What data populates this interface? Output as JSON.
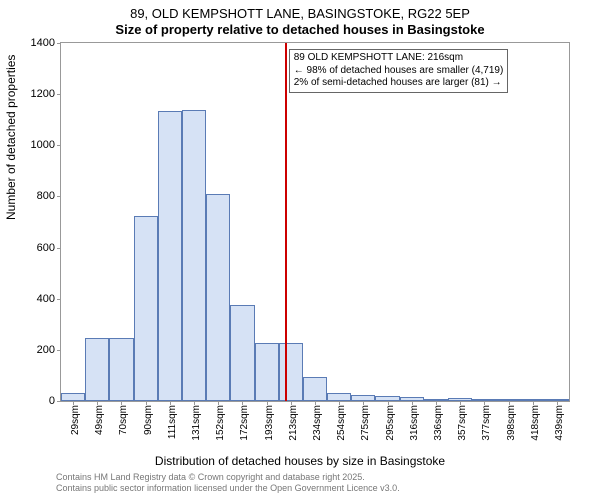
{
  "chart": {
    "type": "histogram",
    "title_main": "89, OLD KEMPSHOTT LANE, BASINGSTOKE, RG22 5EP",
    "title_sub": "Size of property relative to detached houses in Basingstoke",
    "ylabel": "Number of detached properties",
    "xlabel": "Distribution of detached houses by size in Basingstoke",
    "title_fontsize": 13,
    "label_fontsize": 12,
    "tick_fontsize": 11,
    "background_color": "#ffffff",
    "border_color": "#999999",
    "x_categories": [
      "29sqm",
      "49sqm",
      "70sqm",
      "90sqm",
      "111sqm",
      "131sqm",
      "152sqm",
      "172sqm",
      "193sqm",
      "213sqm",
      "234sqm",
      "254sqm",
      "275sqm",
      "295sqm",
      "316sqm",
      "336sqm",
      "357sqm",
      "377sqm",
      "398sqm",
      "418sqm",
      "439sqm"
    ],
    "values": [
      30,
      245,
      245,
      725,
      1135,
      1140,
      810,
      375,
      225,
      225,
      95,
      30,
      25,
      20,
      15,
      5,
      10,
      0,
      0,
      0,
      0
    ],
    "bar_fill": "#d6e2f5",
    "bar_stroke": "#5a7bb5",
    "vline_color": "#cc0000",
    "vline_x_index": 9.25,
    "ylim": [
      0,
      1400
    ],
    "ytick_step": 200,
    "yticks": [
      0,
      200,
      400,
      600,
      800,
      1000,
      1200,
      1400
    ],
    "bar_width_ratio": 1.0,
    "annot": {
      "lines": [
        "89 OLD KEMPSHOTT LANE: 216sqm",
        "← 98% of detached houses are smaller (4,719)",
        "2% of semi-detached houses are larger (81) →"
      ],
      "border_color": "#666666"
    }
  },
  "credits": {
    "line1": "Contains HM Land Registry data © Crown copyright and database right 2025.",
    "line2": "Contains public sector information licensed under the Open Government Licence v3.0."
  }
}
